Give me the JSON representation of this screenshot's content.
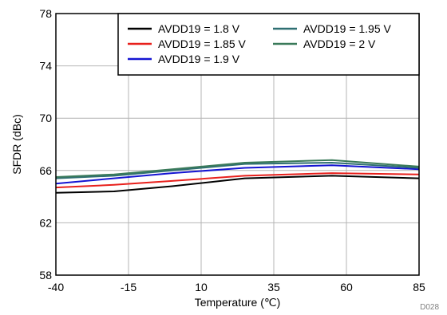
{
  "chart_data": {
    "type": "line",
    "xlabel": "Temperature (℃)",
    "ylabel": "SFDR (dBc)",
    "xlim": [
      -40,
      85
    ],
    "ylim": [
      58,
      78
    ],
    "xticks": [
      -40,
      -15,
      10,
      35,
      60,
      85
    ],
    "yticks": [
      58,
      62,
      66,
      70,
      74,
      78
    ],
    "grid": true,
    "legend_position": "top-right",
    "figure_id": "D028",
    "x": [
      -40,
      -20,
      0,
      25,
      55,
      85
    ],
    "series": [
      {
        "name": "AVDD19 = 1.8 V",
        "color": "#000000",
        "values": [
          64.3,
          64.4,
          64.8,
          65.4,
          65.6,
          65.4
        ]
      },
      {
        "name": "AVDD19 = 1.85 V",
        "color": "#e8201c",
        "values": [
          64.7,
          64.9,
          65.2,
          65.6,
          65.8,
          65.7
        ]
      },
      {
        "name": "AVDD19 = 1.9 V",
        "color": "#1414d2",
        "values": [
          65.0,
          65.4,
          65.8,
          66.2,
          66.4,
          66.1
        ]
      },
      {
        "name": "AVDD19 = 1.95 V",
        "color": "#2f6f72",
        "values": [
          65.4,
          65.6,
          66.0,
          66.5,
          66.6,
          66.2
        ]
      },
      {
        "name": "AVDD19 = 2 V",
        "color": "#3a7a5a",
        "values": [
          65.5,
          65.7,
          66.1,
          66.6,
          66.8,
          66.3
        ]
      }
    ]
  }
}
